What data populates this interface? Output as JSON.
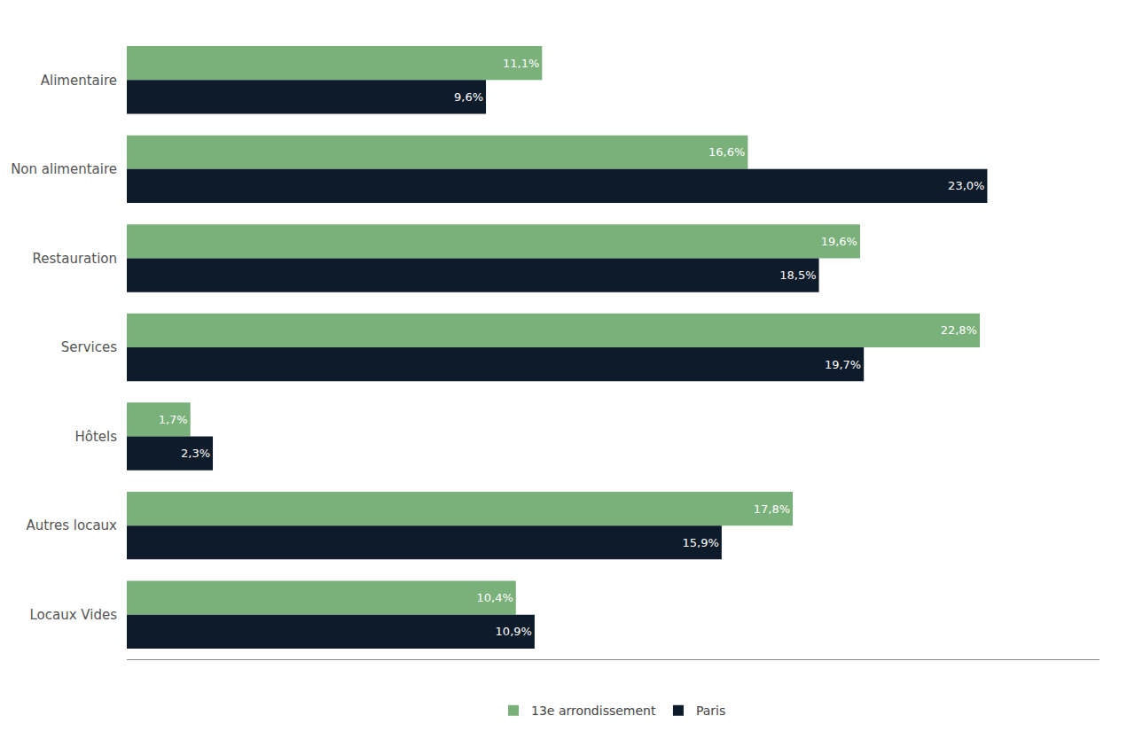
{
  "chart_data": {
    "type": "bar",
    "orientation": "horizontal",
    "categories": [
      "Alimentaire",
      "Non alimentaire",
      "Restauration",
      "Services",
      "Hôtels",
      "Autres locaux",
      "Locaux Vides"
    ],
    "series": [
      {
        "name": "13e arrondissement",
        "color": "#7ab07a",
        "values": [
          11.1,
          16.6,
          19.6,
          22.8,
          1.7,
          17.8,
          10.4
        ],
        "value_labels": [
          "11,1%",
          "16,6%",
          "19,6%",
          "22,8%",
          "1,7%",
          "17,8%",
          "10,4%"
        ]
      },
      {
        "name": "Paris",
        "color": "#0d1b2a",
        "values": [
          9.6,
          23.0,
          18.5,
          19.7,
          2.3,
          15.9,
          10.9
        ],
        "value_labels": [
          "9,6%",
          "23,0%",
          "18,5%",
          "19,7%",
          "2,3%",
          "15,9%",
          "10,9%"
        ]
      }
    ],
    "xlim": [
      0,
      26
    ],
    "data_labels": true,
    "tick_labels": "y",
    "grid": false,
    "legend": "bottom"
  }
}
